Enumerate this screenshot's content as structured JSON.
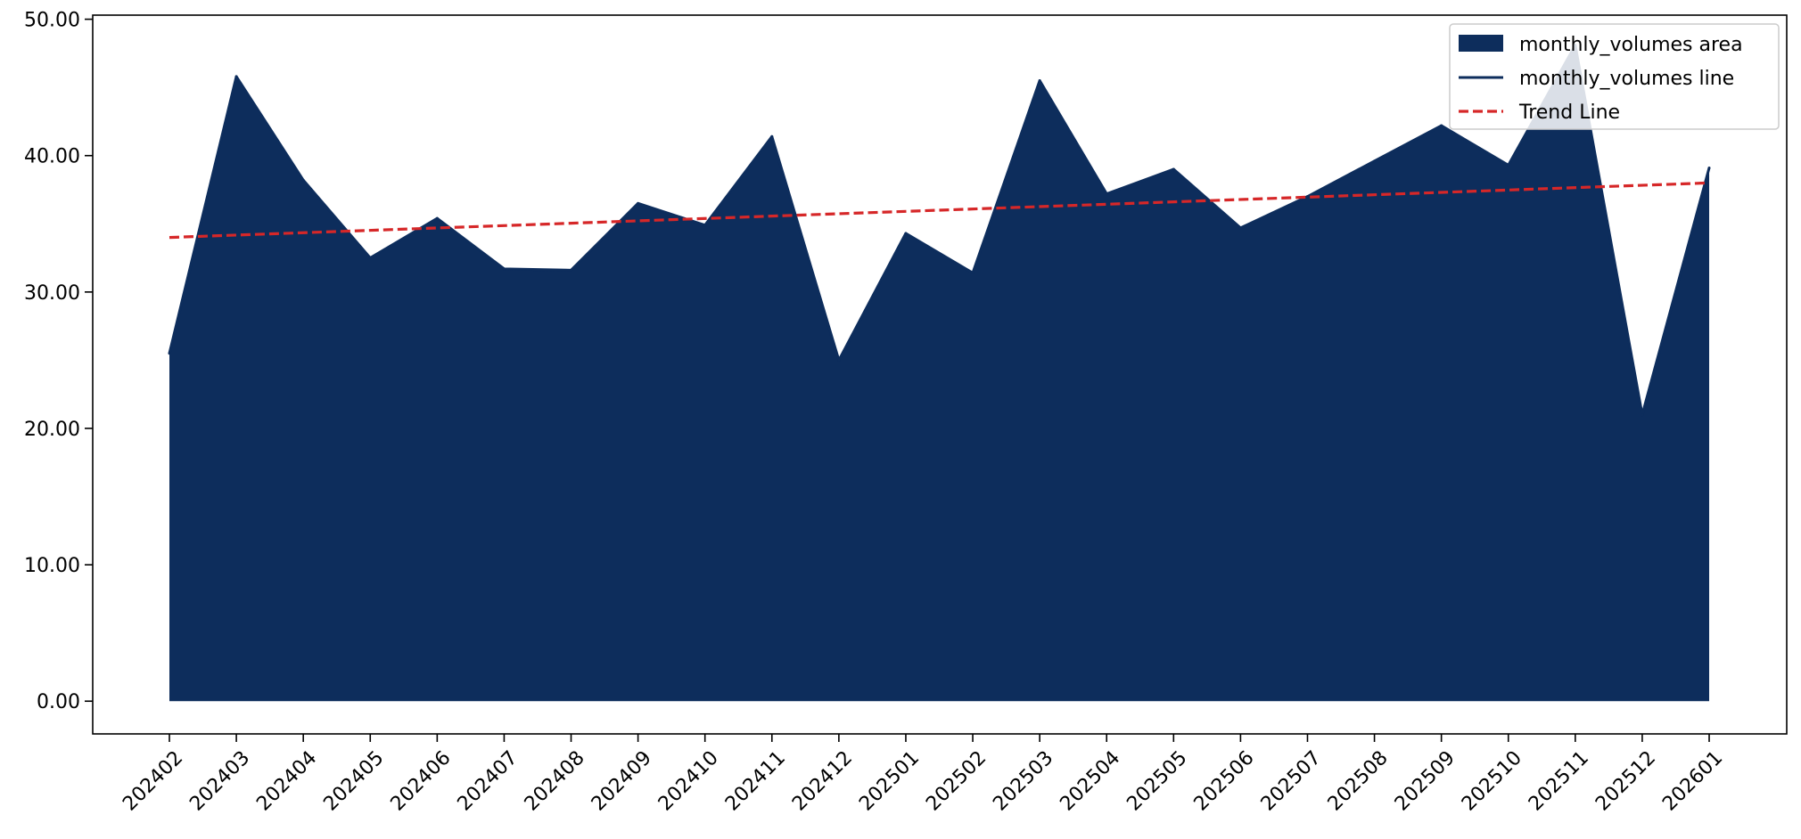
{
  "chart_data": {
    "type": "area",
    "title": "",
    "xlabel": "",
    "ylabel": "",
    "categories": [
      "202402",
      "202403",
      "202404",
      "202405",
      "202406",
      "202407",
      "202408",
      "202409",
      "202410",
      "202411",
      "202412",
      "202501",
      "202502",
      "202503",
      "202504",
      "202505",
      "202506",
      "202507",
      "202508",
      "202509",
      "202510",
      "202511",
      "202512",
      "202601"
    ],
    "series": [
      {
        "name": "monthly_volumes",
        "values": [
          25.5,
          45.8,
          38.2,
          32.5,
          35.4,
          31.7,
          31.6,
          36.5,
          34.9,
          41.4,
          25.0,
          34.3,
          31.4,
          45.5,
          37.2,
          39.0,
          34.7,
          37.0,
          39.6,
          42.2,
          39.3,
          48.1,
          21.0,
          39.1
        ],
        "color": "#0d2d5c"
      }
    ],
    "trend": {
      "name": "Trend Line",
      "start": 34.0,
      "end": 38.0,
      "color": "#d62728"
    },
    "ylim": [
      -2.4,
      50.3
    ],
    "yticks": [
      "0.00",
      "10.00",
      "20.00",
      "30.00",
      "40.00",
      "50.00"
    ],
    "ytick_values": [
      0,
      10,
      20,
      30,
      40,
      50
    ],
    "legend": {
      "position": "top-right",
      "entries": [
        "monthly_volumes area",
        "monthly_volumes line",
        "Trend Line"
      ]
    },
    "grid": false
  }
}
